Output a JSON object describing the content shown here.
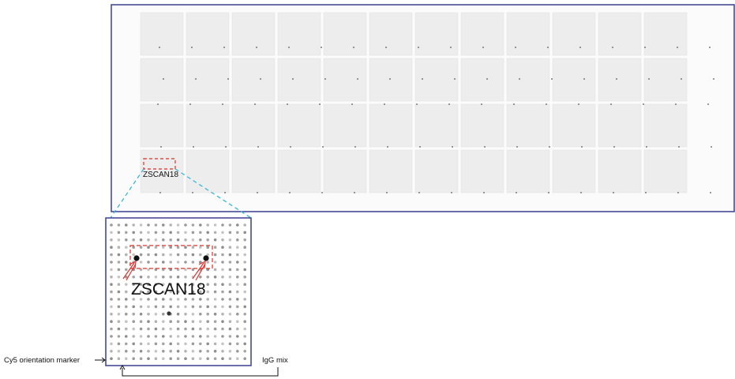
{
  "figure": {
    "overview_callout": {
      "label": "ZSCAN18"
    },
    "inset_callout": {
      "label": "ZSCAN18"
    },
    "annotations": {
      "cy5_marker": "Cy5 orientation marker",
      "igg_mix": "IgG mix"
    },
    "colors": {
      "frame": "#3b3f8f",
      "callout": "#e0302a",
      "zoom_lines": "#38b6d8",
      "spot": "#9a9a9a",
      "spot_strong": "#111111"
    }
  }
}
